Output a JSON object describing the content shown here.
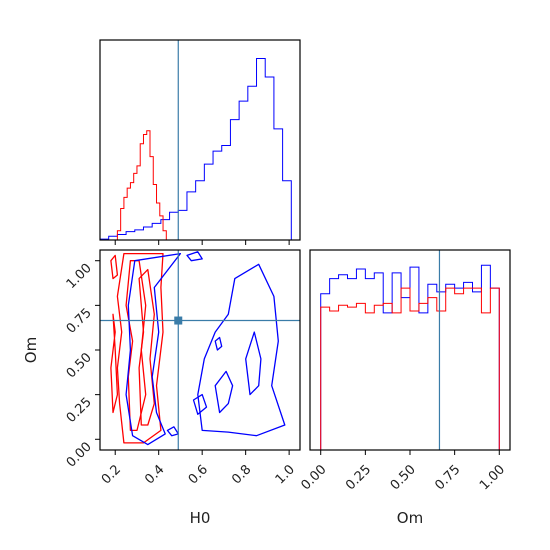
{
  "chart_data": {
    "type": "corner",
    "colors": {
      "blue": "#0000ff",
      "red": "#ff0000",
      "truth": "#3a7ca8"
    },
    "params": [
      "H0",
      "Om"
    ],
    "truth": {
      "H0": 0.49,
      "Om": 0.665
    },
    "panels": [
      {
        "id": "H0_hist",
        "type": "histogram",
        "xlim": [
          0.13,
          1.05
        ],
        "ylim": [
          0,
          1.08
        ],
        "series": [
          {
            "color": "blue",
            "edges": [
              0.13,
              0.17,
              0.21,
              0.25,
              0.29,
              0.33,
              0.37,
              0.41,
              0.45,
              0.49,
              0.53,
              0.57,
              0.61,
              0.65,
              0.69,
              0.73,
              0.77,
              0.81,
              0.85,
              0.89,
              0.93,
              0.97,
              1.01
            ],
            "values": [
              0.005,
              0.02,
              0.03,
              0.045,
              0.055,
              0.07,
              0.09,
              0.11,
              0.15,
              0.16,
              0.26,
              0.32,
              0.41,
              0.48,
              0.51,
              0.65,
              0.75,
              0.83,
              0.98,
              0.88,
              0.6,
              0.32
            ]
          },
          {
            "color": "red",
            "edges": [
              0.21,
              0.225,
              0.24,
              0.255,
              0.27,
              0.285,
              0.3,
              0.315,
              0.33,
              0.345,
              0.36,
              0.375,
              0.39,
              0.405,
              0.42,
              0.435
            ],
            "values": [
              0.05,
              0.17,
              0.23,
              0.28,
              0.31,
              0.36,
              0.4,
              0.52,
              0.57,
              0.59,
              0.45,
              0.3,
              0.2,
              0.13,
              0.05
            ]
          }
        ]
      },
      {
        "id": "Om_hist",
        "type": "histogram",
        "xlim": [
          -0.06,
          1.06
        ],
        "ylim": [
          0,
          1.05
        ],
        "series": [
          {
            "color": "blue",
            "edges": [
              0.0,
              0.05,
              0.1,
              0.15,
              0.2,
              0.25,
              0.3,
              0.35,
              0.4,
              0.45,
              0.5,
              0.55,
              0.6,
              0.65,
              0.7,
              0.75,
              0.8,
              0.85,
              0.9,
              0.95,
              1.0
            ],
            "values": [
              0.82,
              0.9,
              0.92,
              0.9,
              0.95,
              0.9,
              0.93,
              0.72,
              0.93,
              0.8,
              0.96,
              0.72,
              0.87,
              0.83,
              0.87,
              0.85,
              0.88,
              0.83,
              0.97,
              0.85
            ]
          },
          {
            "color": "red",
            "edges": [
              0.0,
              0.05,
              0.1,
              0.15,
              0.2,
              0.25,
              0.3,
              0.35,
              0.4,
              0.45,
              0.5,
              0.55,
              0.6,
              0.65,
              0.7,
              0.75,
              0.8,
              0.85,
              0.9,
              0.95,
              1.0
            ],
            "values": [
              0.75,
              0.73,
              0.76,
              0.75,
              0.77,
              0.72,
              0.76,
              0.77,
              0.72,
              0.85,
              0.73,
              0.77,
              0.8,
              0.73,
              0.85,
              0.82,
              0.85,
              0.85,
              0.72,
              0.85
            ]
          }
        ]
      },
      {
        "id": "H0_Om_contour",
        "type": "contour",
        "xlim": [
          0.13,
          1.05
        ],
        "ylim": [
          -0.06,
          1.06
        ],
        "xlabel": "H0",
        "ylabel": "Om",
        "xticks": [
          "0.2",
          "0.4",
          "0.6",
          "0.8",
          "1.0"
        ],
        "yticks": [
          "0.00",
          "0.25",
          "0.50",
          "0.75",
          "1.00"
        ],
        "contours": [
          {
            "color": "red",
            "points": [
              [
                0.24,
                -0.02
              ],
              [
                0.22,
                0.2
              ],
              [
                0.21,
                0.4
              ],
              [
                0.23,
                0.6
              ],
              [
                0.21,
                0.8
              ],
              [
                0.24,
                1.04
              ],
              [
                0.33,
                1.04
              ],
              [
                0.42,
                1.04
              ],
              [
                0.41,
                0.85
              ],
              [
                0.42,
                0.6
              ],
              [
                0.39,
                0.3
              ],
              [
                0.41,
                0.05
              ],
              [
                0.33,
                -0.02
              ]
            ]
          },
          {
            "color": "red",
            "points": [
              [
                0.27,
                0.05
              ],
              [
                0.26,
                0.35
              ],
              [
                0.28,
                0.55
              ],
              [
                0.25,
                0.75
              ],
              [
                0.27,
                1.0
              ],
              [
                0.31,
                1.0
              ],
              [
                0.34,
                0.75
              ],
              [
                0.32,
                0.5
              ],
              [
                0.34,
                0.25
              ],
              [
                0.3,
                0.05
              ]
            ]
          },
          {
            "color": "red",
            "points": [
              [
                0.32,
                0.08
              ],
              [
                0.31,
                0.4
              ],
              [
                0.33,
                0.6
              ],
              [
                0.31,
                0.9
              ],
              [
                0.35,
                0.95
              ],
              [
                0.38,
                0.7
              ],
              [
                0.36,
                0.45
              ],
              [
                0.38,
                0.2
              ],
              [
                0.35,
                0.08
              ]
            ]
          },
          {
            "color": "red",
            "points": [
              [
                0.19,
                0.9
              ],
              [
                0.18,
                1.0
              ],
              [
                0.2,
                1.03
              ],
              [
                0.21,
                0.92
              ]
            ]
          },
          {
            "color": "red",
            "points": [
              [
                0.19,
                0.15
              ],
              [
                0.18,
                0.4
              ],
              [
                0.2,
                0.6
              ],
              [
                0.19,
                0.7
              ],
              [
                0.2,
                0.5
              ],
              [
                0.21,
                0.25
              ]
            ]
          },
          {
            "color": "blue",
            "points": [
              [
                0.28,
                0.02
              ],
              [
                0.25,
                0.25
              ],
              [
                0.27,
                0.5
              ],
              [
                0.26,
                0.75
              ],
              [
                0.29,
                1.0
              ],
              [
                0.5,
                1.04
              ],
              [
                0.38,
                0.85
              ],
              [
                0.4,
                0.6
              ],
              [
                0.37,
                0.35
              ],
              [
                0.39,
                0.15
              ],
              [
                0.43,
                0.03
              ],
              [
                0.35,
                -0.03
              ]
            ]
          },
          {
            "color": "blue",
            "points": [
              [
                0.6,
                0.05
              ],
              [
                0.58,
                0.25
              ],
              [
                0.61,
                0.45
              ],
              [
                0.66,
                0.6
              ],
              [
                0.72,
                0.7
              ],
              [
                0.75,
                0.9
              ],
              [
                0.86,
                0.98
              ],
              [
                0.93,
                0.8
              ],
              [
                0.95,
                0.55
              ],
              [
                0.92,
                0.3
              ],
              [
                0.98,
                0.08
              ],
              [
                0.85,
                0.02
              ],
              [
                0.72,
                0.04
              ]
            ]
          },
          {
            "color": "blue",
            "points": [
              [
                0.68,
                0.15
              ],
              [
                0.66,
                0.3
              ],
              [
                0.71,
                0.38
              ],
              [
                0.74,
                0.3
              ],
              [
                0.72,
                0.2
              ]
            ]
          },
          {
            "color": "blue",
            "points": [
              [
                0.82,
                0.25
              ],
              [
                0.8,
                0.45
              ],
              [
                0.84,
                0.6
              ],
              [
                0.87,
                0.45
              ],
              [
                0.86,
                0.3
              ]
            ]
          },
          {
            "color": "blue",
            "points": [
              [
                0.67,
                0.5
              ],
              [
                0.66,
                0.55
              ],
              [
                0.68,
                0.57
              ],
              [
                0.69,
                0.52
              ]
            ]
          },
          {
            "color": "blue",
            "points": [
              [
                0.58,
                0.14
              ],
              [
                0.56,
                0.22
              ],
              [
                0.6,
                0.25
              ],
              [
                0.62,
                0.18
              ]
            ]
          },
          {
            "color": "blue",
            "points": [
              [
                0.46,
                0.02
              ],
              [
                0.44,
                0.05
              ],
              [
                0.47,
                0.07
              ],
              [
                0.49,
                0.03
              ]
            ]
          },
          {
            "color": "blue",
            "points": [
              [
                0.55,
                1.0
              ],
              [
                0.53,
                1.03
              ],
              [
                0.58,
                1.05
              ],
              [
                0.6,
                1.01
              ]
            ]
          }
        ]
      }
    ]
  }
}
